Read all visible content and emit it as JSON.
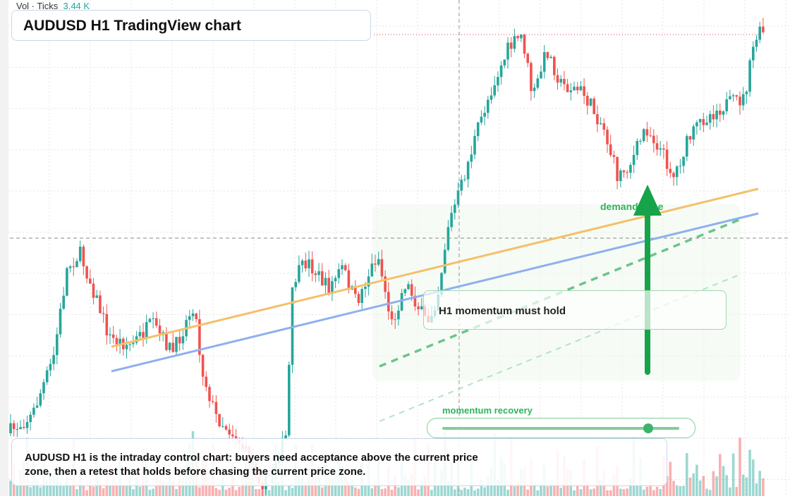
{
  "header": {
    "vol_label": "Vol · Ticks",
    "vol_value": "3.44 K",
    "title": "AUDUSD H1 TradingView chart"
  },
  "annotations": {
    "zone": "demand zone",
    "momentum": "H1 momentum must hold",
    "slider_label": "momentum recovery"
  },
  "note": {
    "line1": "AUDUSD H1 is the intraday control chart: buyers need acceptance above the current price",
    "line2": "zone, then a retest that holds before chasing the current price zone."
  }
}
